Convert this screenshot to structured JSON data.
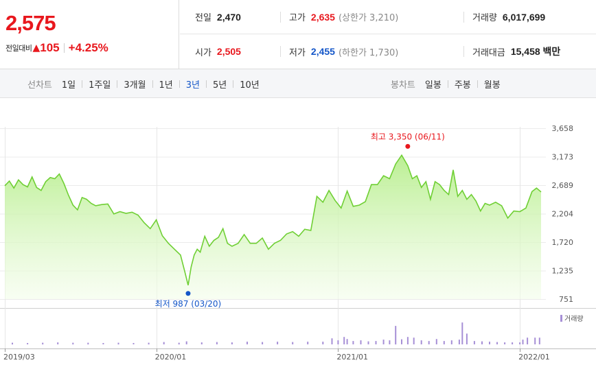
{
  "summary": {
    "price": "2,575",
    "change_label": "전일대비",
    "change_arrow": "▲",
    "change_value": "105",
    "change_rate": "+4.25%"
  },
  "stats": {
    "prev_close_label": "전일",
    "prev_close": "2,470",
    "high_label": "고가",
    "high": "2,635",
    "upper_limit": "(상한가 3,210)",
    "volume_label": "거래량",
    "volume": "6,017,699",
    "open_label": "시가",
    "open": "2,505",
    "low_label": "저가",
    "low": "2,455",
    "lower_limit": "(하한가 1,730)",
    "amount_label": "거래대금",
    "amount": "15,458 백만"
  },
  "line_tabs": {
    "title": "선차트",
    "items": [
      "1일",
      "1주일",
      "3개월",
      "1년",
      "3년",
      "5년",
      "10년"
    ],
    "active": "3년"
  },
  "candle_tabs": {
    "title": "봉차트",
    "items": [
      "일봉",
      "주봉",
      "월봉"
    ]
  },
  "colors": {
    "up": "#e8171d",
    "down": "#1456c8",
    "line": "#6fcf34",
    "volume": "#a68fd6"
  },
  "chart_data": {
    "type": "area",
    "ylim": [
      751,
      3658
    ],
    "yticks": [
      "3,658",
      "3,173",
      "2,689",
      "2,204",
      "1,720",
      "1,235",
      "751"
    ],
    "xticks": [
      {
        "label": "2019/03",
        "t": 0.0
      },
      {
        "label": "2020/01",
        "t": 10.0
      },
      {
        "label": "2021/01",
        "t": 22.0
      },
      {
        "label": "2022/01",
        "t": 34.0
      }
    ],
    "x": [
      0.0,
      0.3,
      0.6,
      0.9,
      1.2,
      1.5,
      1.8,
      2.1,
      2.4,
      2.7,
      3.0,
      3.3,
      3.6,
      3.9,
      4.2,
      4.5,
      4.8,
      5.1,
      5.4,
      5.7,
      6.0,
      6.4,
      6.8,
      7.2,
      7.6,
      8.0,
      8.4,
      8.8,
      9.2,
      9.6,
      10.0,
      10.4,
      10.8,
      11.2,
      11.6,
      11.9,
      12.1,
      12.3,
      12.5,
      12.7,
      12.9,
      13.2,
      13.5,
      13.8,
      14.1,
      14.4,
      14.7,
      15.0,
      15.4,
      15.8,
      16.2,
      16.6,
      17.0,
      17.4,
      17.8,
      18.2,
      18.6,
      19.0,
      19.4,
      19.8,
      20.2,
      20.6,
      21.0,
      21.4,
      21.8,
      22.2,
      22.6,
      23.0,
      23.4,
      23.8,
      24.2,
      24.6,
      25.0,
      25.4,
      25.8,
      26.2,
      26.6,
      26.9,
      27.2,
      27.5,
      27.8,
      28.1,
      28.4,
      28.7,
      29.0,
      29.3,
      29.6,
      29.9,
      30.2,
      30.5,
      30.8,
      31.1,
      31.4,
      31.7,
      32.0,
      32.4,
      32.8,
      33.2,
      33.6,
      34.0,
      34.4,
      34.8,
      35.1,
      35.4
    ],
    "values": [
      2680,
      2760,
      2640,
      2780,
      2700,
      2660,
      2830,
      2650,
      2600,
      2750,
      2820,
      2800,
      2880,
      2720,
      2520,
      2350,
      2270,
      2480,
      2450,
      2380,
      2340,
      2360,
      2370,
      2200,
      2240,
      2210,
      2230,
      2180,
      2050,
      1950,
      2100,
      1830,
      1700,
      1600,
      1500,
      1200,
      987,
      1300,
      1500,
      1600,
      1550,
      1820,
      1650,
      1750,
      1800,
      1950,
      1700,
      1650,
      1700,
      1850,
      1700,
      1700,
      1790,
      1600,
      1700,
      1750,
      1860,
      1900,
      1820,
      1940,
      1920,
      2500,
      2400,
      2600,
      2430,
      2300,
      2590,
      2330,
      2350,
      2410,
      2700,
      2700,
      2850,
      2800,
      3050,
      3200,
      3020,
      2800,
      2850,
      2650,
      2750,
      2450,
      2750,
      2700,
      2600,
      2530,
      2950,
      2500,
      2600,
      2450,
      2530,
      2420,
      2250,
      2380,
      2350,
      2400,
      2340,
      2130,
      2250,
      2240,
      2300,
      2580,
      2640,
      2575
    ],
    "max": {
      "label": "최고 3,350 (06/11)",
      "value": 3350,
      "t": 26.6
    },
    "min": {
      "label": "최저 987 (03/20)",
      "value": 987,
      "t": 12.1
    },
    "volume": {
      "label": "거래량",
      "x": [
        0.5,
        1.5,
        2.5,
        3.5,
        4.5,
        5.5,
        6.5,
        7.5,
        8.5,
        9.5,
        10.5,
        11.5,
        12.0,
        13.0,
        14.0,
        15.0,
        16.0,
        17.0,
        18.0,
        19.0,
        20.0,
        21.0,
        21.6,
        22.0,
        22.4,
        22.6,
        23.0,
        23.5,
        24.0,
        24.5,
        25.0,
        25.4,
        25.8,
        26.2,
        26.6,
        27.0,
        27.5,
        28.0,
        28.5,
        29.0,
        29.5,
        30.0,
        30.2,
        30.5,
        31.0,
        31.5,
        32.0,
        32.5,
        33.0,
        33.5,
        34.0,
        34.2,
        34.5,
        35.0,
        35.3
      ],
      "values": [
        0.05,
        0.04,
        0.05,
        0.06,
        0.05,
        0.05,
        0.04,
        0.05,
        0.04,
        0.05,
        0.07,
        0.05,
        0.09,
        0.06,
        0.07,
        0.06,
        0.08,
        0.07,
        0.08,
        0.07,
        0.08,
        0.08,
        0.18,
        0.12,
        0.22,
        0.16,
        0.1,
        0.12,
        0.09,
        0.1,
        0.14,
        0.12,
        0.55,
        0.15,
        0.22,
        0.2,
        0.12,
        0.1,
        0.16,
        0.1,
        0.12,
        0.14,
        0.65,
        0.32,
        0.1,
        0.09,
        0.08,
        0.07,
        0.06,
        0.06,
        0.06,
        0.14,
        0.2,
        0.2,
        0.2
      ]
    }
  }
}
